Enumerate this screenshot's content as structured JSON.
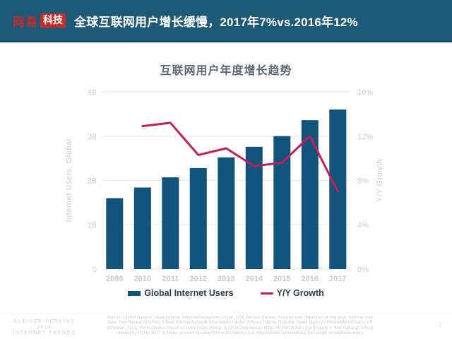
{
  "theme": {
    "header_bg": "#1D5A78",
    "header_border": "#144B64",
    "logo_red": "#C52B28",
    "title_text": "#FFFFFF",
    "chart_title": "#596878",
    "tick": "#C7CBCF",
    "grid": "#E9EBED",
    "legend_text": "#2E3D4C",
    "footer_text": "#C9CDD1",
    "source_text": "#C6CACE",
    "divider": "#F0F1F2"
  },
  "header": {
    "logo_primary": "网易",
    "logo_badge": "科技",
    "title": "全球互联网用户增长缓慢，2017年7%vs.2016年12%"
  },
  "chart_data": {
    "type": "bar",
    "title": "互联网用户年度增长趋势",
    "categories": [
      "2009",
      "2010",
      "2011",
      "2012",
      "2013",
      "2014",
      "2015",
      "2016",
      "2017"
    ],
    "series": [
      {
        "name": "Global Internet Users",
        "type": "bar",
        "axis": "left",
        "values": [
          1.6,
          1.84,
          2.07,
          2.28,
          2.52,
          2.76,
          3.0,
          3.36,
          3.6
        ]
      },
      {
        "name": "Y/Y Growth",
        "type": "line",
        "axis": "right",
        "values": [
          null,
          12.9,
          13.2,
          10.3,
          10.9,
          9.3,
          9.6,
          12.0,
          7.0
        ]
      }
    ],
    "y_left": {
      "label": "Internet Users, Global",
      "unit": "billions",
      "min": 0,
      "max": 4,
      "ticks": [
        "0",
        "1B",
        "2B",
        "3B",
        "4B"
      ]
    },
    "y_right": {
      "label": "Y/Y Growth",
      "unit": "percent",
      "min": 0,
      "max": 16,
      "ticks": [
        "0%",
        "4%",
        "8%",
        "12%",
        "16%"
      ]
    },
    "colors": {
      "bar": "#11537A",
      "line": "#C41E56"
    },
    "grid": true,
    "legend_position": "bottom"
  },
  "footer": {
    "brand_lines": [
      "KLEINER PERKINS",
      "2018",
      "INTERNET TRENDS"
    ],
    "page_number": "7"
  },
  "source_lines": [
    "Source: United Nations / International Telecommunications Union, USA Census Bureau. Internet user data is as of mid-year. Internet user",
    "data: Pew Research (USA), China Internet Network Information Center (China), Islamic Republic News Agency / InternetWorldStats / KP",
    "estimates (Iran). KP estimates based on IAMAI data (India), & APJII (Indonesia). Note: Historical data (particularly in Sub-Saharan Africa)",
    "revised by ITU in 2017 to better account for dual-SIM subscriptions (i.e. two Internet subscriptions per single smartphone user)."
  ]
}
